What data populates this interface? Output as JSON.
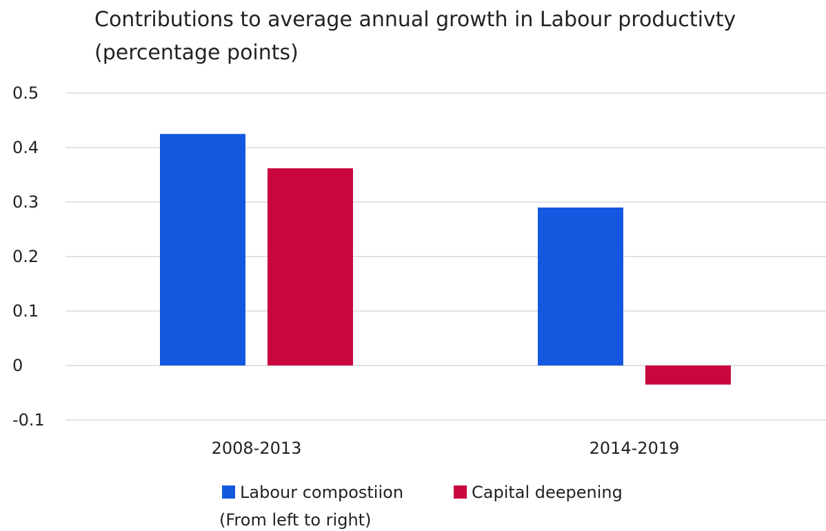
{
  "chart_data": {
    "type": "bar",
    "title_lines": [
      "Contributions to average annual growth in Labour productivty",
      "(percentage points)"
    ],
    "categories": [
      "2008-2013",
      "2014-2019"
    ],
    "series": [
      {
        "name": "Labour compostiion",
        "values": [
          0.425,
          0.29
        ],
        "color": "#1558e0"
      },
      {
        "name": "Capital deepening",
        "values": [
          0.362,
          -0.035
        ],
        "color": "#c8063f"
      }
    ],
    "ylim": [
      -0.1,
      0.5
    ],
    "yticks": [
      0.5,
      0.4,
      0.3,
      0.2,
      0.1,
      0,
      -0.1
    ],
    "ytick_labels": [
      "0.5",
      "0.4",
      "0.3",
      "0.2",
      "0.1",
      "0",
      "-0.1"
    ],
    "grid": true,
    "legend_position": "bottom",
    "legend_note": "(From left to right)"
  }
}
